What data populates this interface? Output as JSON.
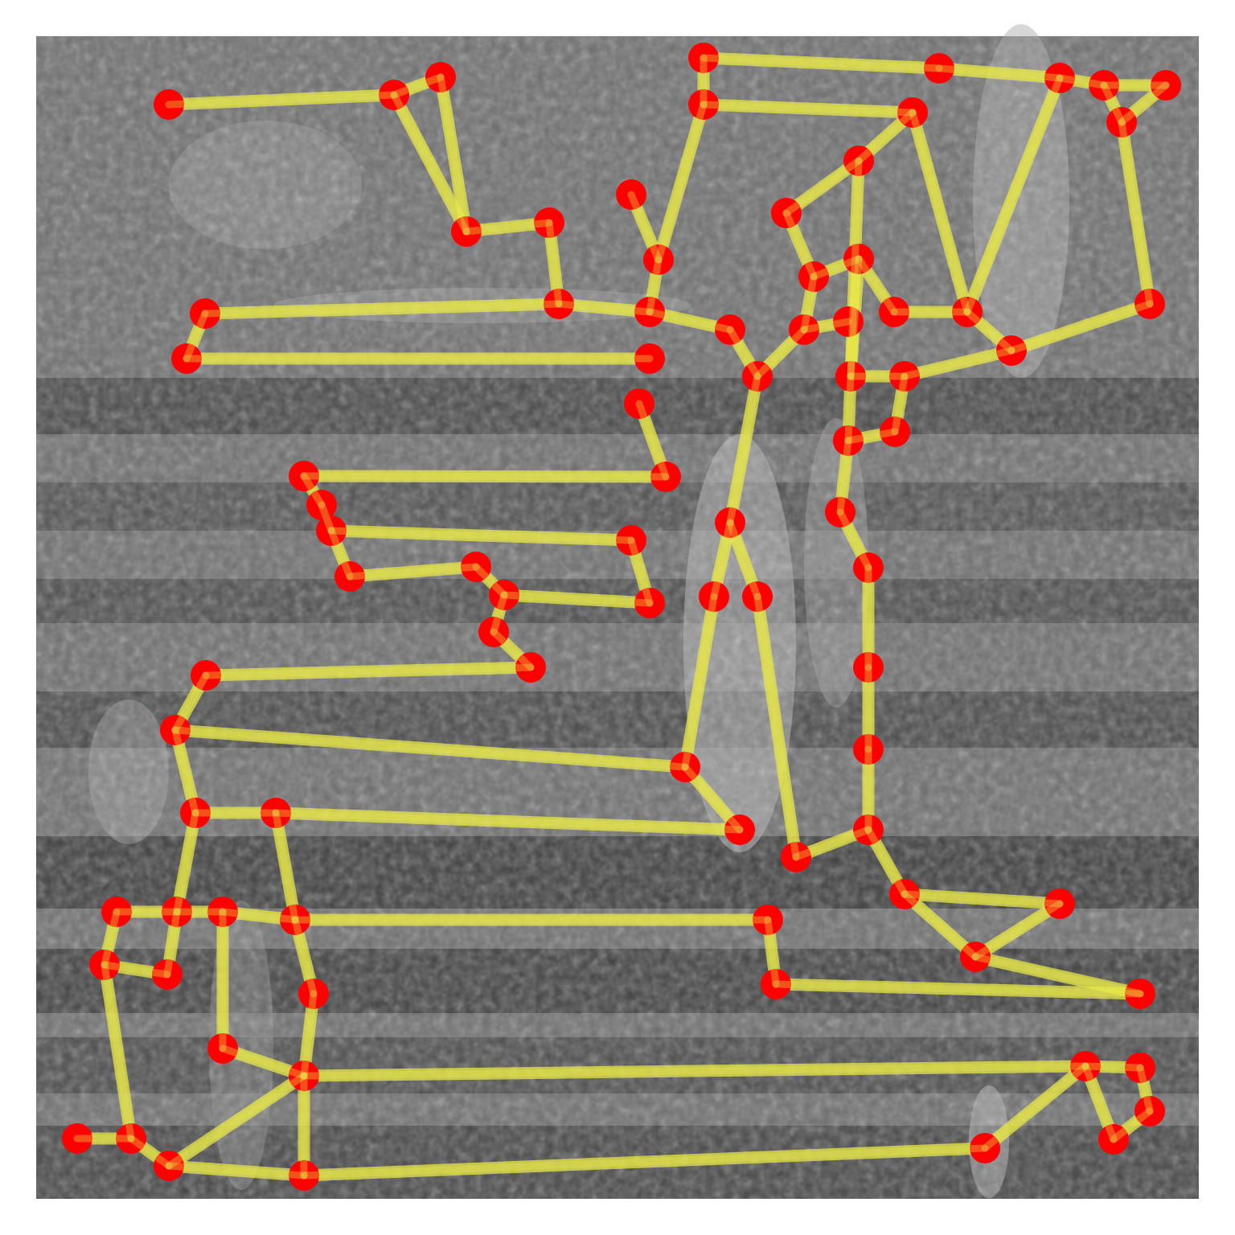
{
  "image": {
    "description_free": true,
    "frame_color": "#ffffff",
    "background_tone": "#6f6f6f"
  },
  "overlay": {
    "node_color": "#ff0000",
    "edge_color": "#e8e84a",
    "node_count": 88
  }
}
